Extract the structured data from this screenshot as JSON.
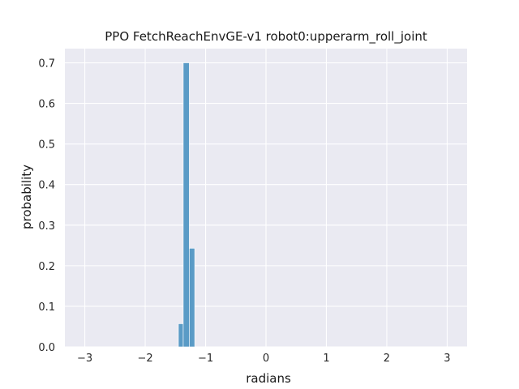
{
  "chart_data": {
    "type": "bar",
    "title": "PPO FetchReachEnvGE-v1 robot0:upperarm_roll_joint",
    "xlabel": "radians",
    "ylabel": "probability",
    "xlim": [
      -3.33,
      3.33
    ],
    "ylim": [
      0,
      0.735
    ],
    "grid": true,
    "background_color": "#eaeaf2",
    "bar_color": "#5a9bc6",
    "x_ticks": [
      -3,
      -2,
      -1,
      0,
      1,
      2,
      3
    ],
    "x_tick_labels": [
      "−3",
      "−2",
      "−1",
      "0",
      "1",
      "2",
      "3"
    ],
    "y_ticks": [
      0.0,
      0.1,
      0.2,
      0.3,
      0.4,
      0.5,
      0.6,
      0.7
    ],
    "y_tick_labels": [
      "0.0",
      "0.1",
      "0.2",
      "0.3",
      "0.4",
      "0.5",
      "0.6",
      "0.7"
    ],
    "bars": [
      {
        "x0": -1.45,
        "x1": -1.37,
        "value": 0.057
      },
      {
        "x0": -1.37,
        "x1": -1.27,
        "value": 0.7
      },
      {
        "x0": -1.27,
        "x1": -1.18,
        "value": 0.243
      }
    ]
  }
}
